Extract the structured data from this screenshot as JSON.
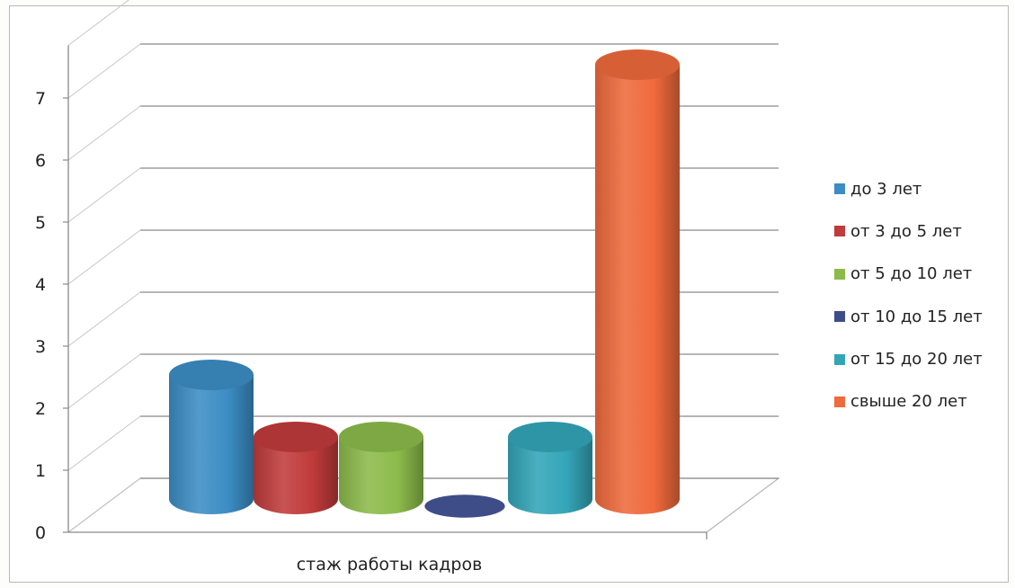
{
  "chart_data": {
    "type": "bar",
    "style": "3d-cylinder",
    "categories": [
      "стаж работы кадров"
    ],
    "series": [
      {
        "name": "до 3 лет",
        "values": [
          2
        ],
        "color": "#3c8dc5"
      },
      {
        "name": "от 3 до 5 лет",
        "values": [
          1
        ],
        "color": "#c03b3b"
      },
      {
        "name": "от 5 до 10 лет",
        "values": [
          1
        ],
        "color": "#8cbb4a"
      },
      {
        "name": "от 10 до 15 лет",
        "values": [
          0
        ],
        "color": "#3e4d88"
      },
      {
        "name": "от 15 до 20 лет",
        "values": [
          1
        ],
        "color": "#33a5b8"
      },
      {
        "name": "свыше 20 лет",
        "values": [
          7
        ],
        "color": "#ef6a3c"
      }
    ],
    "yticks": [
      "0",
      "1",
      "2",
      "3",
      "4",
      "5",
      "6",
      "7"
    ],
    "ylim": [
      0,
      7
    ],
    "grid": true,
    "legend_position": "right"
  }
}
